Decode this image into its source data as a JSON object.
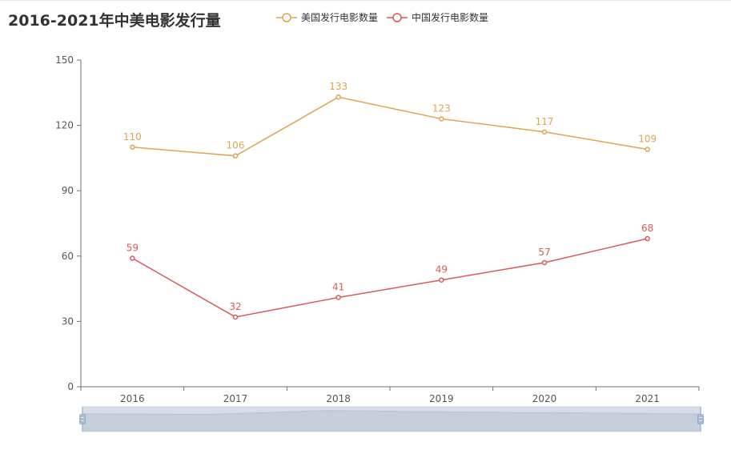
{
  "chart_data": {
    "type": "line",
    "title": "2016-2021年中美电影发行量",
    "categories": [
      "2016",
      "2017",
      "2018",
      "2019",
      "2020",
      "2021"
    ],
    "ylim": [
      0,
      150
    ],
    "yticks": [
      0,
      30,
      60,
      90,
      120,
      150
    ],
    "xlabel": "",
    "ylabel": "",
    "legend_position": "top-center",
    "grid": false,
    "series": [
      {
        "name": "美国发行电影数量",
        "color": "#dda451",
        "values": [
          110,
          106,
          133,
          123,
          117,
          109
        ]
      },
      {
        "name": "中国发行电影数量",
        "color": "#d9595b",
        "values": [
          59,
          32,
          41,
          49,
          57,
          68
        ]
      }
    ],
    "data_zoom": {
      "start_percent": 0,
      "end_percent": 100
    }
  }
}
